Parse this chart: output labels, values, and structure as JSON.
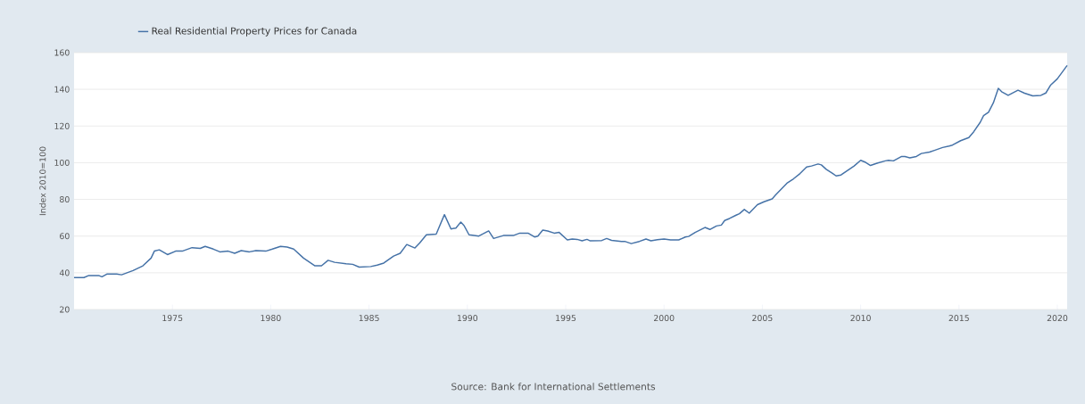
{
  "chart_data": {
    "type": "line",
    "ylabel": "Index 2010=100",
    "annotations": [
      "Source: Bank for International Settlements"
    ],
    "legend": "top left",
    "grid": "y",
    "xlim": [
      "1970-01",
      "2020-07"
    ],
    "xticks": [
      "1975",
      "1980",
      "1985",
      "1990",
      "1995",
      "2000",
      "2005",
      "2010",
      "2015",
      "2020"
    ],
    "ylim": [
      20,
      160
    ],
    "yticks": [
      20,
      40,
      60,
      80,
      100,
      120,
      140,
      160
    ],
    "series": [
      {
        "name": "Real Residential Property Prices for Canada",
        "color": "#4572a7",
        "x": [
          "1970-01",
          "1970-07",
          "1970-10",
          "1971-04",
          "1971-06",
          "1971-09",
          "1972-03",
          "1972-06",
          "1973-01",
          "1973-07",
          "1973-12",
          "1974-02",
          "1974-05",
          "1974-10",
          "1975-03",
          "1975-07",
          "1976-01",
          "1976-06",
          "1976-09",
          "1977-02",
          "1977-06",
          "1977-11",
          "1978-03",
          "1978-07",
          "1978-12",
          "1979-04",
          "1979-10",
          "1980-02",
          "1980-07",
          "1980-11",
          "1981-03",
          "1981-09",
          "1982-04",
          "1982-08",
          "1982-12",
          "1983-04",
          "1983-11",
          "1984-03",
          "1984-07",
          "1985-02",
          "1985-06",
          "1985-10",
          "1986-04",
          "1986-08",
          "1986-12",
          "1987-05",
          "1987-08",
          "1987-12",
          "1988-06",
          "1988-11",
          "1989-03",
          "1989-06",
          "1989-09",
          "1989-11",
          "1990-02",
          "1990-08",
          "1991-02",
          "1991-05",
          "1991-11",
          "1992-05",
          "1992-09",
          "1993-02",
          "1993-06",
          "1993-08",
          "1993-11",
          "1994-02",
          "1994-06",
          "1994-09",
          "1995-02",
          "1995-05",
          "1995-08",
          "1995-11",
          "1996-02",
          "1996-04",
          "1996-11",
          "1997-02",
          "1997-05",
          "1997-11",
          "1998-01",
          "1998-05",
          "1998-10",
          "1999-02",
          "1999-05",
          "1999-09",
          "2000-01",
          "2000-05",
          "2000-10",
          "2001-02",
          "2001-04",
          "2001-08",
          "2002-02",
          "2002-05",
          "2002-09",
          "2002-12",
          "2003-02",
          "2003-05",
          "2003-09",
          "2003-11",
          "2004-02",
          "2004-05",
          "2004-10",
          "2005-02",
          "2005-07",
          "2005-09",
          "2006-04",
          "2006-08",
          "2006-12",
          "2007-04",
          "2007-07",
          "2007-11",
          "2008-01",
          "2008-04",
          "2008-08",
          "2008-10",
          "2009-01",
          "2009-05",
          "2009-09",
          "2010-01",
          "2010-04",
          "2010-07",
          "2010-11",
          "2011-04",
          "2011-06",
          "2011-09",
          "2012-02",
          "2012-04",
          "2012-07",
          "2012-11",
          "2013-02",
          "2013-07",
          "2013-10",
          "2014-03",
          "2014-07",
          "2014-09",
          "2015-02",
          "2015-07",
          "2015-10",
          "2016-02",
          "2016-04",
          "2016-07",
          "2016-10",
          "2017-01",
          "2017-03",
          "2017-07",
          "2018-01",
          "2018-05",
          "2018-10",
          "2019-03",
          "2019-06",
          "2019-09",
          "2020-01",
          "2020-07"
        ],
        "values": [
          37.4,
          37.4,
          38.5,
          38.5,
          37.8,
          39.3,
          39.3,
          38.9,
          41.2,
          43.8,
          48,
          51.8,
          52.5,
          49.9,
          51.8,
          51.8,
          53.7,
          53.3,
          54.4,
          52.9,
          51.4,
          51.8,
          50.6,
          52.1,
          51.4,
          52.1,
          51.8,
          52.9,
          54.4,
          54,
          52.9,
          48,
          43.8,
          43.8,
          46.8,
          45.7,
          44.9,
          44.6,
          43.1,
          43.4,
          44.2,
          45.3,
          49.1,
          50.6,
          55.4,
          53.5,
          56.3,
          60.7,
          61.1,
          71.7,
          63.9,
          64.4,
          67.6,
          65.7,
          60.7,
          60,
          62.8,
          58.7,
          60.3,
          60.3,
          61.6,
          61.6,
          59.5,
          60,
          63.3,
          62.8,
          61.6,
          62,
          57.9,
          58.4,
          58.2,
          57.4,
          58.2,
          57.4,
          57.6,
          58.7,
          57.7,
          57.1,
          57.1,
          55.9,
          57.1,
          58.4,
          57.4,
          58,
          58.4,
          57.9,
          57.9,
          59.5,
          59.8,
          62,
          64.7,
          63.6,
          65.5,
          66,
          68.5,
          69.6,
          71.4,
          72.2,
          74.5,
          72.5,
          77.1,
          78.7,
          80.3,
          82.3,
          88.8,
          91.2,
          94.1,
          97.7,
          98.2,
          99.3,
          98.8,
          96.4,
          94.1,
          92.8,
          93.3,
          95.8,
          98.2,
          101.3,
          100.2,
          98.5,
          99.7,
          101,
          101.3,
          101,
          103.4,
          103.4,
          102.6,
          103.4,
          105,
          105.8,
          106.7,
          108.3,
          109.1,
          109.6,
          112,
          113.7,
          116.9,
          122.1,
          125.7,
          127.5,
          132.7,
          140.5,
          138.7,
          136.7,
          139.5,
          137.9,
          136.4,
          136.7,
          138,
          142.4,
          145.7,
          153
        ]
      }
    ]
  }
}
